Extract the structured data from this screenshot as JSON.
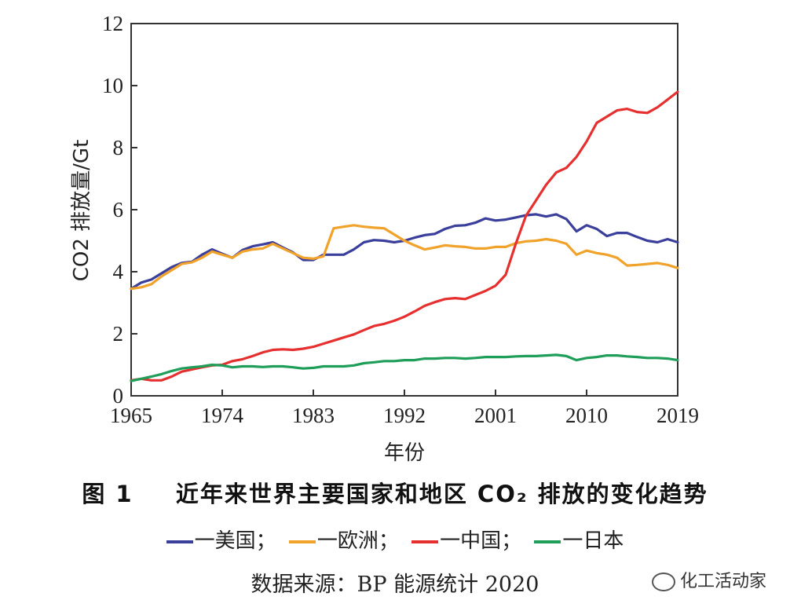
{
  "chart_data": {
    "type": "line",
    "ylabel": "CO2 排放量/Gt",
    "xlabel": "年份",
    "xlim": [
      1965,
      2019
    ],
    "ylim": [
      0,
      12
    ],
    "xticks": [
      "1965",
      "1974",
      "1983",
      "1992",
      "2001",
      "2010",
      "2019"
    ],
    "yticks": [
      "0",
      "2",
      "4",
      "6",
      "8",
      "10",
      "12"
    ],
    "grid": false,
    "series": [
      {
        "name": "美国",
        "color": "#3b3f9c",
        "x": [
          1965,
          1966,
          1967,
          1968,
          1969,
          1970,
          1971,
          1972,
          1973,
          1974,
          1975,
          1976,
          1977,
          1978,
          1979,
          1980,
          1981,
          1982,
          1983,
          1984,
          1985,
          1986,
          1987,
          1988,
          1989,
          1990,
          1991,
          1992,
          1993,
          1994,
          1995,
          1996,
          1997,
          1998,
          1999,
          2000,
          2001,
          2002,
          2003,
          2004,
          2005,
          2006,
          2007,
          2008,
          2009,
          2010,
          2011,
          2012,
          2013,
          2014,
          2015,
          2016,
          2017,
          2018,
          2019
        ],
        "values": [
          3.45,
          3.65,
          3.75,
          3.95,
          4.15,
          4.28,
          4.32,
          4.55,
          4.72,
          4.58,
          4.45,
          4.7,
          4.82,
          4.88,
          4.95,
          4.78,
          4.62,
          4.38,
          4.38,
          4.55,
          4.55,
          4.55,
          4.72,
          4.95,
          5.02,
          5.0,
          4.95,
          5.0,
          5.1,
          5.18,
          5.22,
          5.38,
          5.48,
          5.5,
          5.58,
          5.72,
          5.65,
          5.68,
          5.75,
          5.82,
          5.85,
          5.78,
          5.85,
          5.7,
          5.3,
          5.5,
          5.38,
          5.15,
          5.25,
          5.25,
          5.12,
          5.0,
          4.95,
          5.05,
          4.95
        ]
      },
      {
        "name": "欧洲",
        "color": "#f0a22a",
        "x": [
          1965,
          1966,
          1967,
          1968,
          1969,
          1970,
          1971,
          1972,
          1973,
          1974,
          1975,
          1976,
          1977,
          1978,
          1979,
          1980,
          1981,
          1982,
          1983,
          1984,
          1985,
          1986,
          1987,
          1988,
          1989,
          1990,
          1991,
          1992,
          1993,
          1994,
          1995,
          1996,
          1997,
          1998,
          1999,
          2000,
          2001,
          2002,
          2003,
          2004,
          2005,
          2006,
          2007,
          2008,
          2009,
          2010,
          2011,
          2012,
          2013,
          2014,
          2015,
          2016,
          2017,
          2018,
          2019
        ],
        "values": [
          3.45,
          3.5,
          3.6,
          3.85,
          4.05,
          4.25,
          4.3,
          4.45,
          4.65,
          4.55,
          4.45,
          4.65,
          4.72,
          4.75,
          4.9,
          4.75,
          4.6,
          4.45,
          4.42,
          4.5,
          5.4,
          5.45,
          5.5,
          5.45,
          5.42,
          5.4,
          5.2,
          5.0,
          4.85,
          4.72,
          4.78,
          4.85,
          4.82,
          4.8,
          4.75,
          4.75,
          4.8,
          4.8,
          4.92,
          4.98,
          5.0,
          5.05,
          5.0,
          4.9,
          4.55,
          4.68,
          4.6,
          4.55,
          4.45,
          4.2,
          4.22,
          4.25,
          4.28,
          4.22,
          4.12
        ]
      },
      {
        "name": "中国",
        "color": "#e63030",
        "x": [
          1965,
          1966,
          1967,
          1968,
          1969,
          1970,
          1971,
          1972,
          1973,
          1974,
          1975,
          1976,
          1977,
          1978,
          1979,
          1980,
          1981,
          1982,
          1983,
          1984,
          1985,
          1986,
          1987,
          1988,
          1989,
          1990,
          1991,
          1992,
          1993,
          1994,
          1995,
          1996,
          1997,
          1998,
          1999,
          2000,
          2001,
          2002,
          2003,
          2004,
          2005,
          2006,
          2007,
          2008,
          2009,
          2010,
          2011,
          2012,
          2013,
          2014,
          2015,
          2016,
          2017,
          2018,
          2019
        ],
        "values": [
          0.5,
          0.55,
          0.5,
          0.5,
          0.62,
          0.78,
          0.85,
          0.92,
          0.98,
          1.0,
          1.12,
          1.18,
          1.28,
          1.4,
          1.48,
          1.5,
          1.48,
          1.52,
          1.58,
          1.68,
          1.78,
          1.88,
          1.98,
          2.12,
          2.25,
          2.32,
          2.42,
          2.55,
          2.72,
          2.9,
          3.02,
          3.12,
          3.15,
          3.12,
          3.25,
          3.38,
          3.55,
          3.9,
          4.9,
          5.8,
          6.3,
          6.8,
          7.2,
          7.35,
          7.7,
          8.2,
          8.8,
          9.0,
          9.2,
          9.25,
          9.15,
          9.12,
          9.3,
          9.55,
          9.8
        ]
      },
      {
        "name": "日本",
        "color": "#1f9e5a",
        "x": [
          1965,
          1966,
          1967,
          1968,
          1969,
          1970,
          1971,
          1972,
          1973,
          1974,
          1975,
          1976,
          1977,
          1978,
          1979,
          1980,
          1981,
          1982,
          1983,
          1984,
          1985,
          1986,
          1987,
          1988,
          1989,
          1990,
          1991,
          1992,
          1993,
          1994,
          1995,
          1996,
          1997,
          1998,
          1999,
          2000,
          2001,
          2002,
          2003,
          2004,
          2005,
          2006,
          2007,
          2008,
          2009,
          2010,
          2011,
          2012,
          2013,
          2014,
          2015,
          2016,
          2017,
          2018,
          2019
        ],
        "values": [
          0.48,
          0.55,
          0.62,
          0.7,
          0.8,
          0.88,
          0.92,
          0.95,
          1.0,
          0.98,
          0.92,
          0.95,
          0.95,
          0.93,
          0.95,
          0.95,
          0.92,
          0.88,
          0.9,
          0.95,
          0.95,
          0.95,
          0.98,
          1.05,
          1.08,
          1.12,
          1.12,
          1.15,
          1.15,
          1.2,
          1.2,
          1.22,
          1.22,
          1.2,
          1.22,
          1.25,
          1.25,
          1.25,
          1.27,
          1.28,
          1.28,
          1.3,
          1.32,
          1.28,
          1.15,
          1.22,
          1.25,
          1.3,
          1.3,
          1.27,
          1.25,
          1.22,
          1.22,
          1.2,
          1.15
        ]
      }
    ]
  },
  "caption": {
    "figure_number": "图 1",
    "title": "近年来世界主要国家和地区 CO₂ 排放的变化趋势"
  },
  "legend": [
    {
      "label": "一美国；",
      "color": "#3b3f9c"
    },
    {
      "label": "一欧洲；",
      "color": "#f0a22a"
    },
    {
      "label": "一中国；",
      "color": "#e63030"
    },
    {
      "label": "一日本",
      "color": "#1f9e5a"
    }
  ],
  "source": "数据来源：BP 能源统计 2020",
  "watermark": "化工活动家"
}
